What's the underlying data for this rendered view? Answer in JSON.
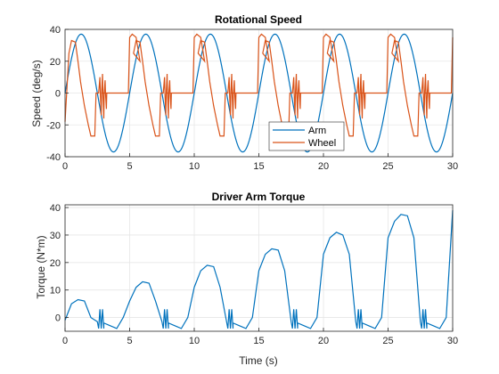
{
  "chart_data": [
    {
      "type": "line",
      "title": "Rotational Speed",
      "xlabel": "",
      "ylabel": "Speed (deg/s)",
      "xlim": [
        0,
        30
      ],
      "ylim": [
        -40,
        40
      ],
      "xticks": [
        0,
        5,
        10,
        15,
        20,
        25,
        30
      ],
      "yticks": [
        -40,
        -20,
        0,
        20,
        40
      ],
      "grid": true,
      "legend": "lower-right",
      "series": [
        {
          "name": "Arm",
          "color": "#0072BD",
          "shape": "sine",
          "amplitude": 37,
          "period": 5,
          "x": [
            0,
            0.25,
            0.5,
            0.75,
            1,
            1.25,
            1.5,
            1.75,
            2,
            2.25,
            2.5,
            2.75,
            3,
            3.25,
            3.5,
            3.75,
            4,
            4.25,
            4.5,
            4.75,
            5
          ],
          "y": [
            0,
            11.4,
            21.7,
            29.9,
            35.2,
            37,
            35.2,
            29.9,
            21.7,
            11.4,
            0,
            -11.4,
            -21.7,
            -29.9,
            -35.2,
            -37,
            -35.2,
            -29.9,
            -21.7,
            -11.4,
            0
          ]
        },
        {
          "name": "Wheel",
          "color": "#D95319",
          "x": [
            0,
            0.3,
            0.5,
            0.8,
            1.0,
            1.2,
            1.5,
            1.8,
            2.0,
            2.3,
            2.4,
            2.6,
            2.8,
            3.0,
            3.2,
            3.4,
            3.6,
            4.0,
            4.5,
            4.9,
            5.0,
            5.2,
            5.5,
            5.8
          ],
          "y": [
            -18,
            25,
            33,
            32,
            20,
            7,
            -8,
            -20,
            -27,
            -27,
            0,
            0,
            0,
            0,
            0,
            0,
            0,
            0,
            0,
            0,
            35,
            37,
            35,
            20
          ],
          "note_pattern": "repeats every 5 s with jitter bursts near 0 between 2.5 and 3.5 s"
        }
      ]
    },
    {
      "type": "line",
      "title": "Driver Arm Torque",
      "xlabel": "Time (s)",
      "ylabel": "Torque (N*m)",
      "xlim": [
        0,
        30
      ],
      "ylim": [
        -5,
        41
      ],
      "xticks": [
        0,
        5,
        10,
        15,
        20,
        25,
        30
      ],
      "yticks": [
        0,
        10,
        20,
        30,
        40
      ],
      "grid": true,
      "series": [
        {
          "color": "#0072BD",
          "x": [
            0,
            0.5,
            1,
            1.5,
            2,
            2.5,
            3,
            3.5,
            4,
            4.5,
            5,
            5.5,
            6,
            6.5,
            7,
            7.5,
            8,
            8.5,
            9,
            9.5,
            10,
            10.5,
            11,
            11.5,
            12,
            12.5,
            13,
            13.5,
            14,
            14.5,
            15,
            15.5,
            16,
            16.5,
            17,
            17.5,
            18,
            18.5,
            19,
            19.5,
            20,
            20.5,
            21,
            21.5,
            22,
            22.5,
            23,
            23.5,
            24,
            24.5,
            25,
            25.5,
            26,
            26.5,
            27,
            27.5,
            28,
            28.5,
            29,
            29.5,
            30
          ],
          "y": [
            -1,
            5,
            6.5,
            6,
            0,
            -1.5,
            -2,
            -3,
            -4,
            0,
            6,
            11,
            13,
            12.5,
            6,
            -1.5,
            -2,
            -3,
            -4,
            0,
            11,
            17,
            19,
            18.5,
            11,
            -1.5,
            -2,
            -3,
            -4,
            0,
            17,
            23,
            25,
            24.5,
            17,
            -1.5,
            -2,
            -3,
            -4,
            0,
            23,
            29,
            31,
            30,
            23,
            -1.5,
            -2,
            -3,
            -4,
            0,
            29,
            35,
            37.5,
            37,
            29,
            -1.5,
            -2,
            -3,
            -4,
            0,
            39
          ]
        }
      ]
    }
  ]
}
